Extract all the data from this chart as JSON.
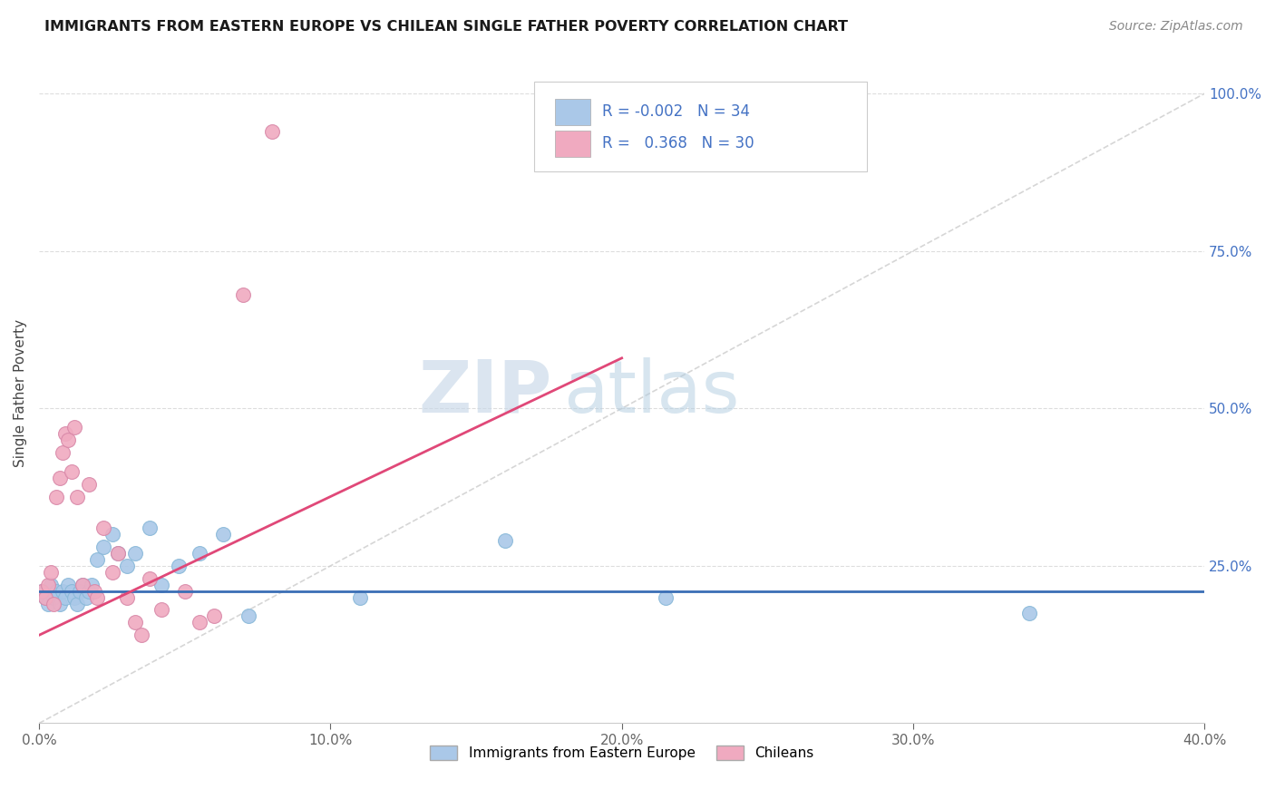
{
  "title": "IMMIGRANTS FROM EASTERN EUROPE VS CHILEAN SINGLE FATHER POVERTY CORRELATION CHART",
  "source": "Source: ZipAtlas.com",
  "ylabel": "Single Father Poverty",
  "ytick_vals": [
    0.0,
    0.25,
    0.5,
    0.75,
    1.0
  ],
  "ytick_labels": [
    "",
    "25.0%",
    "50.0%",
    "75.0%",
    "100.0%"
  ],
  "xtick_vals": [
    0.0,
    0.1,
    0.2,
    0.3,
    0.4
  ],
  "xtick_labels": [
    "0.0%",
    "10.0%",
    "20.0%",
    "30.0%",
    "40.0%"
  ],
  "xlim": [
    0.0,
    0.4
  ],
  "ylim": [
    0.0,
    1.05
  ],
  "legend_blue_R": "-0.002",
  "legend_blue_N": "34",
  "legend_pink_R": "0.368",
  "legend_pink_N": "30",
  "legend_label_blue": "Immigrants from Eastern Europe",
  "legend_label_pink": "Chileans",
  "color_blue": "#aac8e8",
  "color_pink": "#f0aac0",
  "color_blue_line": "#3a6eb5",
  "color_pink_line": "#e04878",
  "color_diag": "#cccccc",
  "watermark_zip": "ZIP",
  "watermark_atlas": "atlas",
  "blue_scatter_x": [
    0.001,
    0.002,
    0.003,
    0.004,
    0.005,
    0.006,
    0.007,
    0.008,
    0.009,
    0.01,
    0.011,
    0.012,
    0.013,
    0.014,
    0.015,
    0.016,
    0.017,
    0.018,
    0.02,
    0.022,
    0.025,
    0.027,
    0.03,
    0.033,
    0.038,
    0.042,
    0.048,
    0.055,
    0.063,
    0.072,
    0.11,
    0.16,
    0.215,
    0.34
  ],
  "blue_scatter_y": [
    0.21,
    0.2,
    0.19,
    0.22,
    0.2,
    0.21,
    0.19,
    0.21,
    0.2,
    0.22,
    0.21,
    0.2,
    0.19,
    0.21,
    0.22,
    0.2,
    0.21,
    0.22,
    0.26,
    0.28,
    0.3,
    0.27,
    0.25,
    0.27,
    0.31,
    0.22,
    0.25,
    0.27,
    0.3,
    0.17,
    0.2,
    0.29,
    0.2,
    0.175
  ],
  "pink_scatter_x": [
    0.001,
    0.002,
    0.003,
    0.004,
    0.005,
    0.006,
    0.007,
    0.008,
    0.009,
    0.01,
    0.011,
    0.012,
    0.013,
    0.015,
    0.017,
    0.019,
    0.02,
    0.022,
    0.025,
    0.027,
    0.03,
    0.033,
    0.035,
    0.038,
    0.042,
    0.05,
    0.055,
    0.06,
    0.07,
    0.08
  ],
  "pink_scatter_y": [
    0.21,
    0.2,
    0.22,
    0.24,
    0.19,
    0.36,
    0.39,
    0.43,
    0.46,
    0.45,
    0.4,
    0.47,
    0.36,
    0.22,
    0.38,
    0.21,
    0.2,
    0.31,
    0.24,
    0.27,
    0.2,
    0.16,
    0.14,
    0.23,
    0.18,
    0.21,
    0.16,
    0.17,
    0.68,
    0.94
  ],
  "blue_hline_y": 0.21,
  "pink_line_x0": 0.0,
  "pink_line_x1": 0.2,
  "pink_line_y0": 0.14,
  "pink_line_y1": 0.58
}
